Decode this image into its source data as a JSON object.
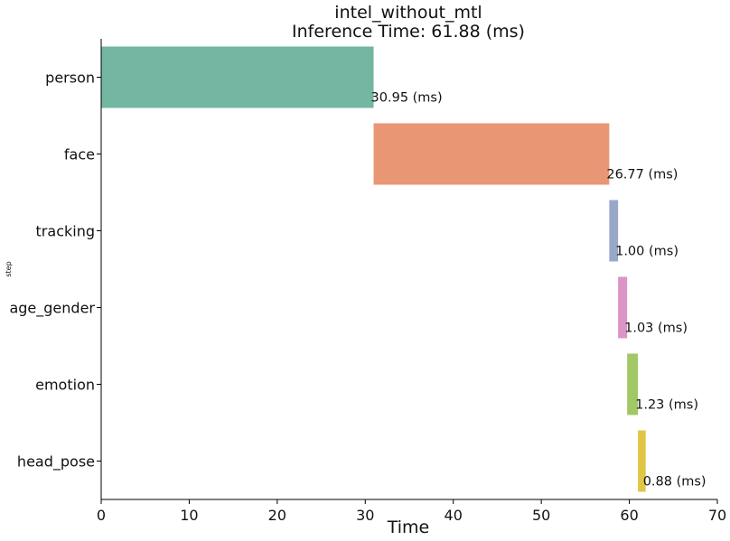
{
  "chart_data": {
    "type": "bar",
    "orientation": "horizontal",
    "variant": "gantt-waterfall",
    "title": "intel_without_mtl",
    "subtitle": "Inference Time: 61.88 (ms)",
    "xlabel": "Time",
    "ylabel": "step",
    "xlim": [
      0,
      70
    ],
    "xticks": [
      0,
      10,
      20,
      30,
      40,
      50,
      60,
      70
    ],
    "categories": [
      "person",
      "face",
      "tracking",
      "age_gender",
      "emotion",
      "head_pose"
    ],
    "starts": [
      0,
      30.95,
      57.72,
      58.72,
      59.75,
      60.98
    ],
    "values": [
      30.95,
      26.77,
      1.0,
      1.03,
      1.23,
      0.88
    ],
    "labels": [
      "30.95 (ms)",
      "26.77 (ms)",
      "1.00 (ms)",
      "1.03 (ms)",
      "1.23 (ms)",
      "0.88 (ms)"
    ],
    "colors": [
      "#73b6a1",
      "#e99675",
      "#98a8c9",
      "#dc93c6",
      "#a2c866",
      "#e1c644"
    ],
    "grid": false,
    "legend": "none"
  }
}
